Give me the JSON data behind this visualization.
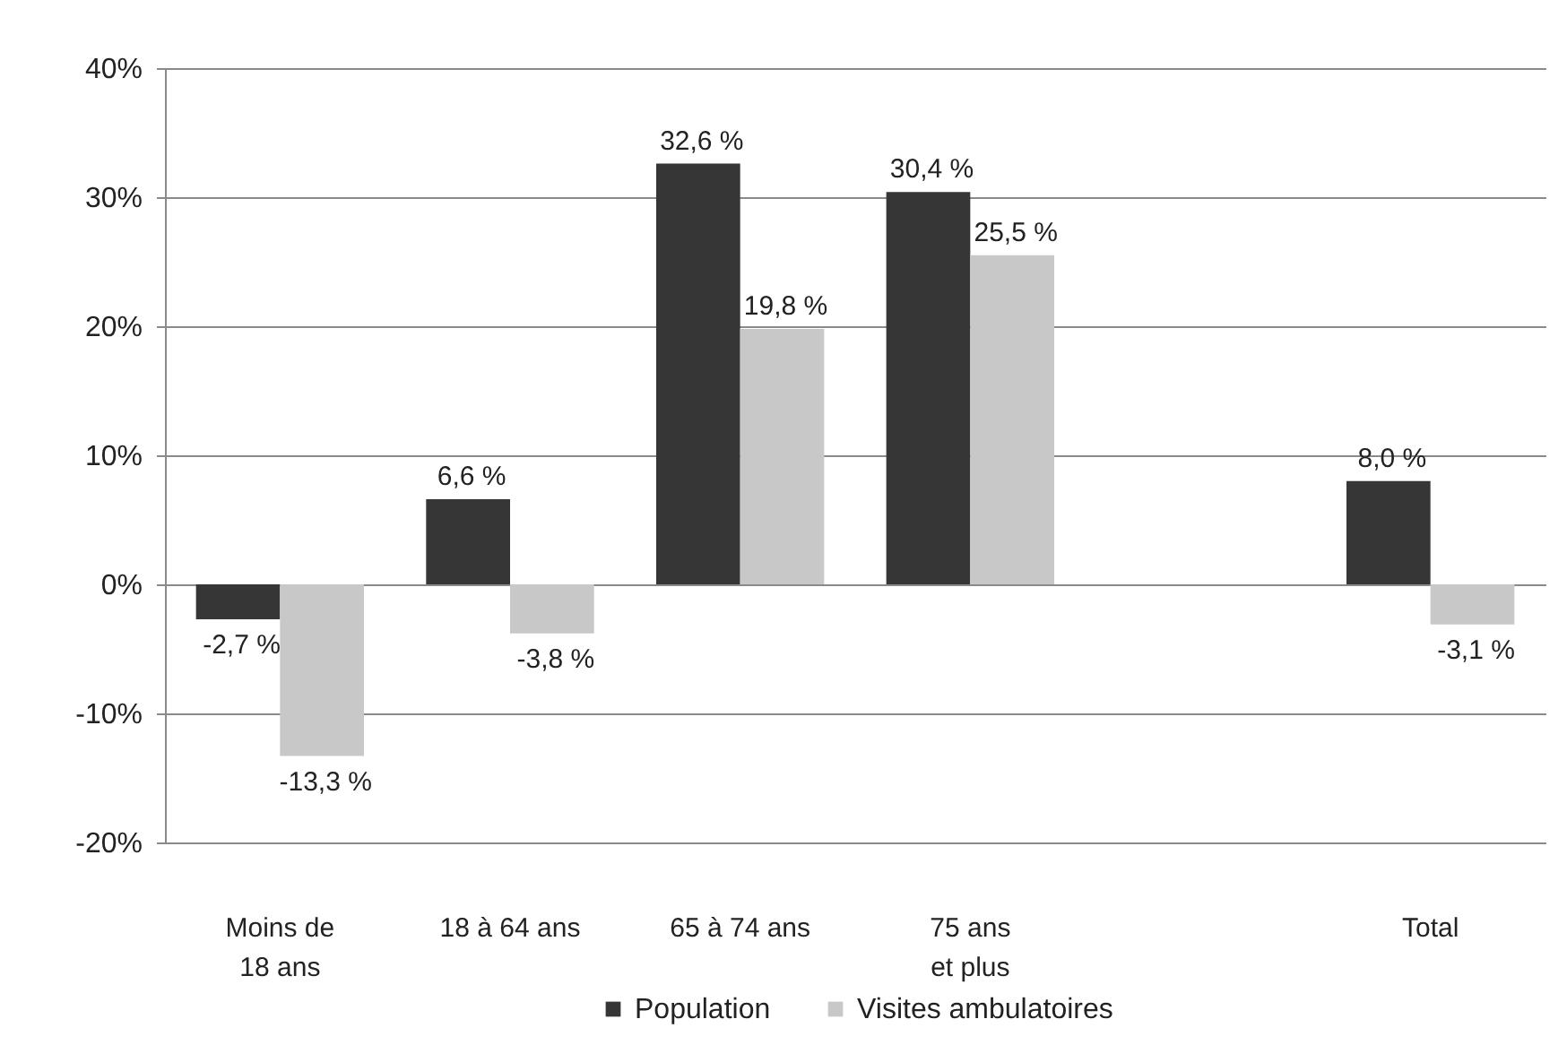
{
  "chart_data": {
    "type": "bar",
    "categories": [
      "Moins de 18 ans",
      "18 à 64 ans",
      "65 à 74 ans",
      "75 ans et plus",
      null,
      "Total"
    ],
    "series": [
      {
        "name": "Population",
        "color": "#363636",
        "values": [
          -2.7,
          6.6,
          32.6,
          30.4,
          null,
          8.0
        ],
        "value_labels": [
          "-2,7 %",
          "6,6 %",
          "32,6 %",
          "30,4 %",
          null,
          "8,0 %"
        ]
      },
      {
        "name": "Visites ambulatoires",
        "color": "#c8c8c8",
        "values": [
          -13.3,
          -3.8,
          19.8,
          25.5,
          null,
          -3.1
        ],
        "value_labels": [
          "-13,3 %",
          "-3,8 %",
          "19,8 %",
          "25,5 %",
          null,
          "-3,1 %"
        ]
      }
    ],
    "ylim": [
      -20,
      40
    ],
    "yticks": [
      {
        "value": -20,
        "label": "-20%"
      },
      {
        "value": -10,
        "label": "-10%"
      },
      {
        "value": 0,
        "label": "0%"
      },
      {
        "value": 10,
        "label": "10%"
      },
      {
        "value": 20,
        "label": "20%"
      },
      {
        "value": 30,
        "label": "30%"
      },
      {
        "value": 40,
        "label": "40%"
      }
    ],
    "grid": "y",
    "legend": "bottom"
  }
}
